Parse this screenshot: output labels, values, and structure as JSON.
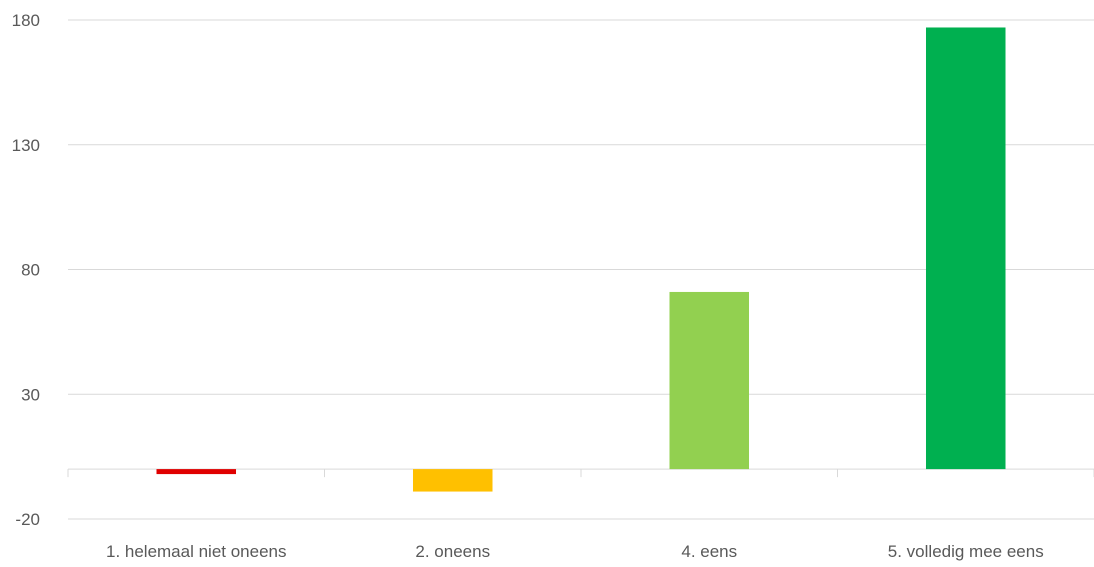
{
  "chart_data": {
    "type": "bar",
    "categories": [
      "1. helemaal niet oneens",
      "2. oneens",
      "4. eens",
      "5. volledig mee eens"
    ],
    "values": [
      -2,
      -9,
      71,
      177
    ],
    "colors": [
      "#E00000",
      "#FFC000",
      "#92D050",
      "#00B050"
    ],
    "yticks": [
      -20,
      30,
      80,
      130,
      180
    ],
    "ylim": [
      -20,
      180
    ],
    "grid": true,
    "legend": "none",
    "title": "",
    "xlabel": "",
    "ylabel": ""
  }
}
